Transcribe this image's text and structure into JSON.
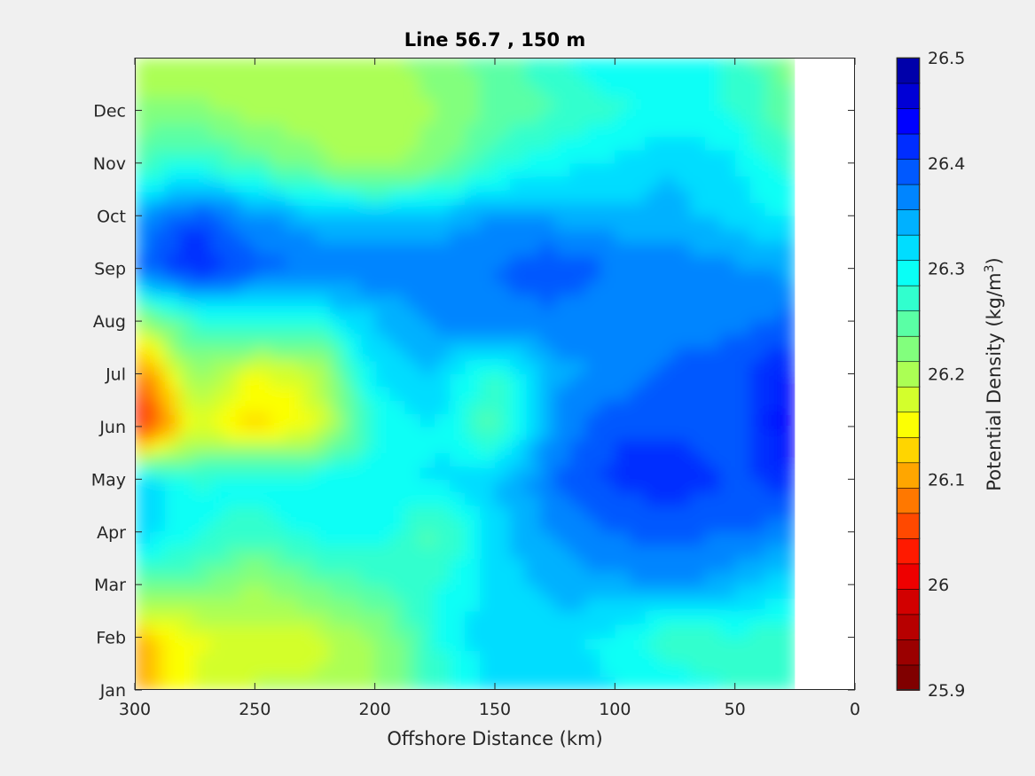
{
  "chart_data": {
    "type": "heatmap",
    "subtype": "filled-contour",
    "title": "Line 56.7 , 150 m",
    "xlabel": "Offshore Distance (km)",
    "xlim": [
      300,
      0
    ],
    "x_reversed": true,
    "x_ticks": [
      300,
      250,
      200,
      150,
      100,
      50,
      0
    ],
    "ylabel": "",
    "y_ticks": [
      "Jan",
      "Feb",
      "Mar",
      "Apr",
      "May",
      "Jun",
      "Jul",
      "Aug",
      "Sep",
      "Oct",
      "Nov",
      "Dec"
    ],
    "y_tick_values": [
      1,
      2,
      3,
      4,
      5,
      6,
      7,
      8,
      9,
      10,
      11,
      12
    ],
    "ylim": [
      1,
      13
    ],
    "data_extent_x": [
      300,
      25
    ],
    "colorbar": {
      "label_main": "Potential Density (kg/m",
      "label_sup": "3",
      "label_end": ")",
      "clim": [
        25.9,
        26.5
      ],
      "tick_values": [
        25.9,
        26,
        26.1,
        26.2,
        26.3,
        26.4,
        26.5
      ],
      "tick_labels": [
        "25.9",
        "26",
        "26.1",
        "26.2",
        "26.3",
        "26.4",
        "26.5"
      ],
      "n_levels": 24,
      "colormap": "jet",
      "colors": [
        "#800000",
        "#9b0000",
        "#b70000",
        "#d20000",
        "#ee0000",
        "#ff1a00",
        "#ff4900",
        "#ff7800",
        "#ffa600",
        "#ffd500",
        "#fcff03",
        "#d3ff2c",
        "#abff54",
        "#82ff7d",
        "#5affa5",
        "#31ffce",
        "#09fff6",
        "#00ddff",
        "#00b1ff",
        "#0085ff",
        "#0059ff",
        "#002dff",
        "#0001ff",
        "#0000d6",
        "#0000aa"
      ]
    },
    "grid": false,
    "z_samples": {
      "x_km": [
        300,
        275,
        250,
        225,
        200,
        175,
        150,
        125,
        100,
        75,
        50,
        25
      ],
      "months": [
        1,
        2,
        3,
        4,
        5,
        6,
        7,
        8,
        9,
        10,
        11,
        12,
        13
      ],
      "values": [
        [
          26.1,
          26.17,
          26.19,
          26.19,
          26.21,
          26.27,
          26.32,
          26.31,
          26.31,
          26.3,
          26.28,
          26.26
        ],
        [
          26.11,
          26.16,
          26.18,
          26.18,
          26.21,
          26.28,
          26.33,
          26.32,
          26.3,
          26.26,
          26.28,
          26.27
        ],
        [
          26.25,
          26.24,
          26.21,
          26.24,
          26.26,
          26.28,
          26.32,
          26.34,
          26.35,
          26.36,
          26.34,
          26.31
        ],
        [
          26.33,
          26.29,
          26.27,
          26.29,
          26.3,
          26.25,
          26.32,
          26.36,
          26.38,
          26.39,
          26.38,
          26.37
        ],
        [
          26.33,
          26.28,
          26.3,
          26.3,
          26.3,
          26.31,
          26.33,
          26.38,
          26.41,
          26.42,
          26.4,
          26.42
        ],
        [
          26.0,
          26.17,
          26.13,
          26.16,
          26.28,
          26.31,
          26.25,
          26.36,
          26.4,
          26.4,
          26.38,
          26.46
        ],
        [
          26.06,
          26.22,
          26.16,
          26.18,
          26.32,
          26.33,
          26.27,
          26.35,
          26.36,
          26.39,
          26.4,
          26.43
        ],
        [
          26.2,
          26.27,
          26.29,
          26.29,
          26.33,
          26.36,
          26.37,
          26.37,
          26.36,
          26.37,
          26.37,
          26.39
        ],
        [
          26.38,
          26.43,
          26.39,
          26.38,
          26.38,
          26.37,
          26.38,
          26.4,
          26.38,
          26.37,
          26.36,
          26.35
        ],
        [
          26.35,
          26.4,
          26.36,
          26.34,
          26.33,
          26.34,
          26.36,
          26.35,
          26.34,
          26.34,
          26.32,
          26.3
        ],
        [
          26.26,
          26.28,
          26.25,
          26.22,
          26.2,
          26.22,
          26.27,
          26.3,
          26.31,
          26.33,
          26.31,
          26.27
        ],
        [
          26.22,
          26.22,
          26.2,
          26.2,
          26.21,
          26.21,
          26.24,
          26.26,
          26.28,
          26.29,
          26.28,
          26.24
        ],
        [
          26.19,
          26.19,
          26.2,
          26.21,
          26.2,
          26.22,
          26.25,
          26.28,
          26.3,
          26.3,
          26.28,
          26.22
        ]
      ]
    }
  }
}
